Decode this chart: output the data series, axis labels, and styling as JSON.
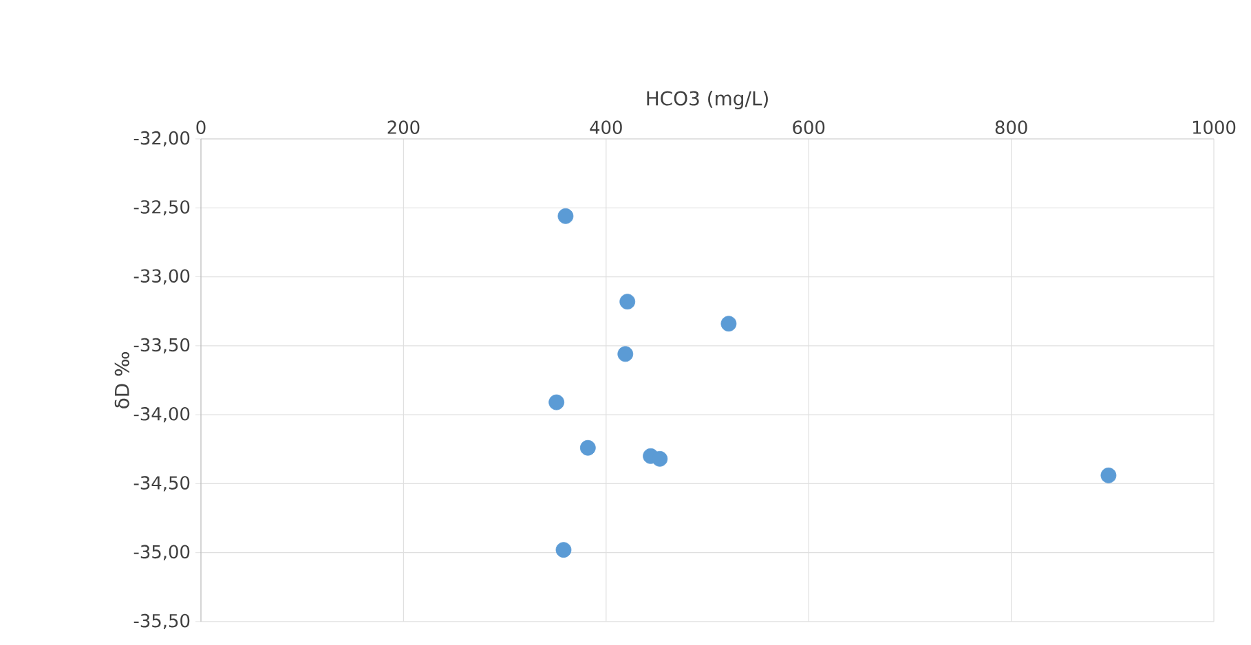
{
  "chart_data": {
    "type": "scatter",
    "xlabel": "HCO3 (mg/L)",
    "ylabel": "δD ‰",
    "x": [
      360,
      421,
      521,
      419,
      351,
      382,
      444,
      453,
      896,
      358
    ],
    "series": [
      {
        "color": "#5b9bd5",
        "values": [
          -32.56,
          -33.18,
          -33.34,
          -33.56,
          -33.91,
          -34.24,
          -34.3,
          -34.32,
          -34.44,
          -34.98
        ]
      }
    ],
    "xlim": [
      0,
      1000
    ],
    "xticks": [
      0,
      200,
      400,
      600,
      800,
      1000
    ],
    "ylim": [
      -35.5,
      -32
    ],
    "yticks": [
      {
        "value": -35.5,
        "label": "-35,50"
      },
      {
        "value": -35,
        "label": "-35,00"
      },
      {
        "value": -34.5,
        "label": "-34,50"
      },
      {
        "value": -34,
        "label": "-34,00"
      },
      {
        "value": -33.5,
        "label": "-33,50"
      },
      {
        "value": -33,
        "label": "-33,00"
      },
      {
        "value": -32.5,
        "label": "-32,50"
      },
      {
        "value": -32,
        "label": "-32,00"
      }
    ],
    "grid": true,
    "marker": "circle"
  }
}
